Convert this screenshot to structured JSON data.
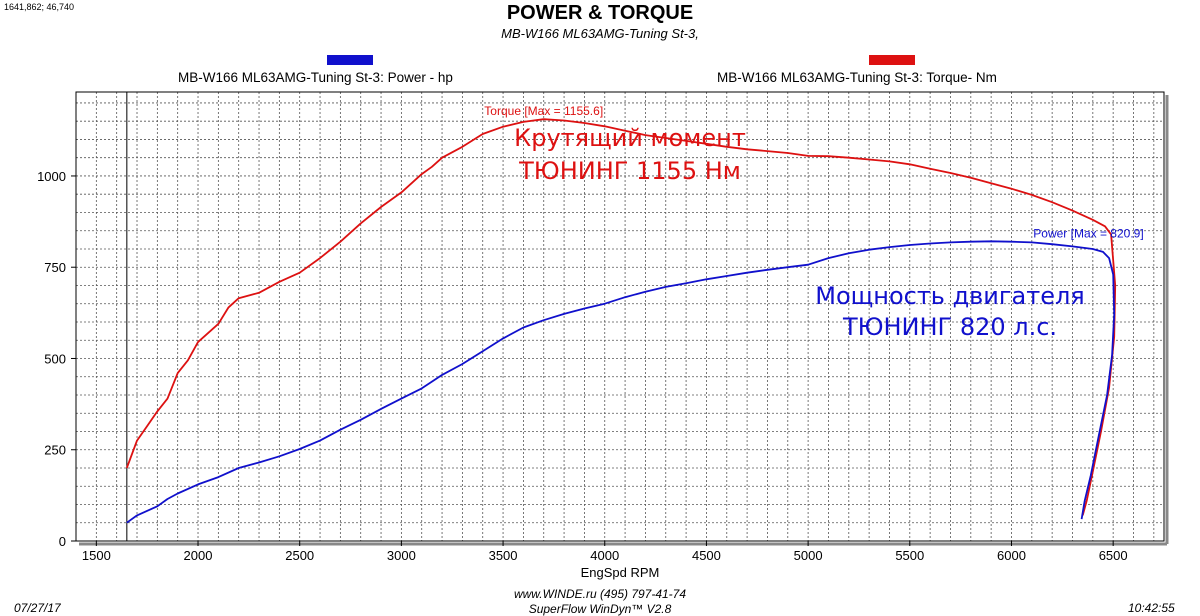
{
  "header": {
    "coords": "1641,862; 46,740",
    "title": "POWER & TORQUE",
    "subtitle": "MB-W166 ML63AMG-Tuning St-3,"
  },
  "legend": {
    "power_label": "MB-W166 ML63AMG-Tuning St-3: Power -  hp",
    "torque_label": "MB-W166 ML63AMG-Tuning St-3: Torque-  Nm"
  },
  "annotations": {
    "torque_line1": "Крутящий момент",
    "torque_line2": "ТЮНИНГ 1155 Нм",
    "power_line1": "Мощность двигателя",
    "power_line2": "ТЮНИНГ 820 л.с."
  },
  "footer": {
    "date": "07/27/17",
    "website": "www.WINDE.ru  (495) 797-41-74",
    "software": "SuperFlow WinDyn™ V2.8",
    "time": "10:42:55"
  },
  "colors": {
    "power": "#1010cc",
    "torque": "#dd1111",
    "grid": "#555555"
  },
  "chart_data": {
    "type": "line",
    "xlabel": "EngSpd  RPM",
    "xlim": [
      1400,
      6750
    ],
    "ylim": [
      0,
      1230
    ],
    "xticks": [
      1500,
      2000,
      2500,
      3000,
      3500,
      4000,
      4500,
      5000,
      5500,
      6000,
      6500
    ],
    "yticks": [
      0,
      250,
      500,
      750,
      1000
    ],
    "grid": true,
    "legend_placement": "top",
    "series": [
      {
        "name": "Torque",
        "peak_label": "Torque [Max = 1155.6]",
        "points": [
          [
            1650,
            200
          ],
          [
            1700,
            275
          ],
          [
            1750,
            315
          ],
          [
            1800,
            355
          ],
          [
            1850,
            390
          ],
          [
            1900,
            460
          ],
          [
            1950,
            495
          ],
          [
            2000,
            545
          ],
          [
            2050,
            570
          ],
          [
            2100,
            595
          ],
          [
            2150,
            640
          ],
          [
            2200,
            665
          ],
          [
            2300,
            680
          ],
          [
            2400,
            710
          ],
          [
            2500,
            735
          ],
          [
            2600,
            775
          ],
          [
            2700,
            820
          ],
          [
            2800,
            870
          ],
          [
            2900,
            915
          ],
          [
            3000,
            955
          ],
          [
            3100,
            1005
          ],
          [
            3150,
            1025
          ],
          [
            3200,
            1050
          ],
          [
            3300,
            1080
          ],
          [
            3400,
            1115
          ],
          [
            3500,
            1135
          ],
          [
            3600,
            1148
          ],
          [
            3700,
            1155.6
          ],
          [
            3800,
            1152
          ],
          [
            3900,
            1145
          ],
          [
            4000,
            1136
          ],
          [
            4100,
            1124
          ],
          [
            4200,
            1112
          ],
          [
            4300,
            1104
          ],
          [
            4400,
            1096
          ],
          [
            4500,
            1088
          ],
          [
            4600,
            1080
          ],
          [
            4700,
            1073
          ],
          [
            4800,
            1068
          ],
          [
            4900,
            1063
          ],
          [
            5000,
            1055
          ],
          [
            5100,
            1054
          ],
          [
            5200,
            1050
          ],
          [
            5300,
            1045
          ],
          [
            5400,
            1040
          ],
          [
            5500,
            1032
          ],
          [
            5600,
            1020
          ],
          [
            5700,
            1008
          ],
          [
            5800,
            995
          ],
          [
            5900,
            980
          ],
          [
            6000,
            965
          ],
          [
            6100,
            948
          ],
          [
            6200,
            928
          ],
          [
            6300,
            905
          ],
          [
            6400,
            880
          ],
          [
            6460,
            862
          ],
          [
            6490,
            840
          ],
          [
            6510,
            700
          ],
          [
            6505,
            560
          ],
          [
            6480,
            420
          ],
          [
            6440,
            300
          ],
          [
            6400,
            190
          ],
          [
            6370,
            110
          ],
          [
            6350,
            70
          ]
        ]
      },
      {
        "name": "Power",
        "peak_label": "Power  [Max = 820.9]",
        "points": [
          [
            1650,
            50
          ],
          [
            1700,
            70
          ],
          [
            1800,
            95
          ],
          [
            1850,
            115
          ],
          [
            1900,
            130
          ],
          [
            2000,
            155
          ],
          [
            2100,
            175
          ],
          [
            2200,
            200
          ],
          [
            2300,
            215
          ],
          [
            2400,
            232
          ],
          [
            2500,
            252
          ],
          [
            2600,
            275
          ],
          [
            2700,
            305
          ],
          [
            2800,
            332
          ],
          [
            2900,
            362
          ],
          [
            3000,
            390
          ],
          [
            3100,
            418
          ],
          [
            3200,
            455
          ],
          [
            3300,
            485
          ],
          [
            3400,
            520
          ],
          [
            3500,
            555
          ],
          [
            3600,
            585
          ],
          [
            3700,
            605
          ],
          [
            3800,
            622
          ],
          [
            3900,
            637
          ],
          [
            4000,
            650
          ],
          [
            4100,
            668
          ],
          [
            4200,
            683
          ],
          [
            4300,
            696
          ],
          [
            4400,
            706
          ],
          [
            4500,
            717
          ],
          [
            4600,
            726
          ],
          [
            4700,
            735
          ],
          [
            4800,
            743
          ],
          [
            4900,
            750
          ],
          [
            5000,
            757
          ],
          [
            5100,
            775
          ],
          [
            5200,
            788
          ],
          [
            5300,
            798
          ],
          [
            5400,
            805
          ],
          [
            5500,
            811
          ],
          [
            5600,
            815
          ],
          [
            5700,
            818
          ],
          [
            5800,
            820
          ],
          [
            5900,
            820.9
          ],
          [
            6000,
            820
          ],
          [
            6100,
            818
          ],
          [
            6200,
            813
          ],
          [
            6300,
            807
          ],
          [
            6400,
            800
          ],
          [
            6450,
            792
          ],
          [
            6480,
            775
          ],
          [
            6500,
            730
          ],
          [
            6505,
            620
          ],
          [
            6495,
            510
          ],
          [
            6470,
            400
          ],
          [
            6430,
            290
          ],
          [
            6390,
            180
          ],
          [
            6360,
            110
          ],
          [
            6345,
            60
          ]
        ]
      }
    ]
  }
}
